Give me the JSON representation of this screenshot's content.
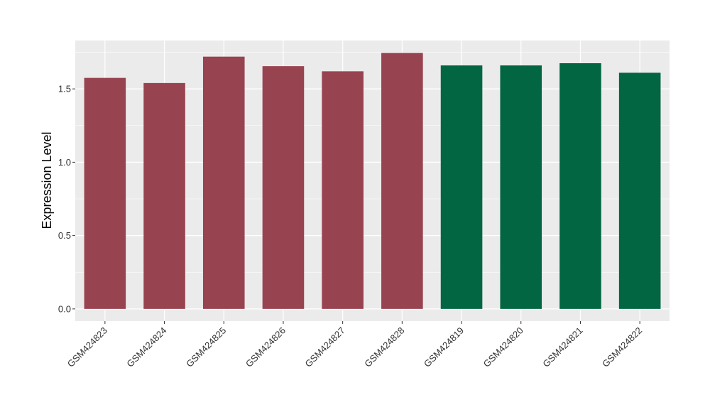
{
  "chart_data": {
    "type": "bar",
    "title": "",
    "xlabel": "",
    "ylabel": "Expression Level",
    "categories": [
      "GSM424823",
      "GSM424824",
      "GSM424825",
      "GSM424826",
      "GSM424827",
      "GSM424828",
      "GSM424819",
      "GSM424820",
      "GSM424821",
      "GSM424822"
    ],
    "values": [
      1.575,
      1.54,
      1.72,
      1.655,
      1.62,
      1.745,
      1.66,
      1.66,
      1.675,
      1.61
    ],
    "bar_colors": [
      "#984350",
      "#984350",
      "#984350",
      "#984350",
      "#984350",
      "#984350",
      "#036643",
      "#036643",
      "#036643",
      "#036643"
    ],
    "y_ticks": [
      0.0,
      0.5,
      1.0,
      1.5
    ],
    "y_tick_labels": [
      "0.0",
      "0.5",
      "1.0",
      "1.5"
    ],
    "ylim": [
      -0.083,
      1.83
    ],
    "grid": true,
    "legend": "none",
    "panel_background": "#EBEBEB",
    "grid_color": "#FFFFFF"
  }
}
